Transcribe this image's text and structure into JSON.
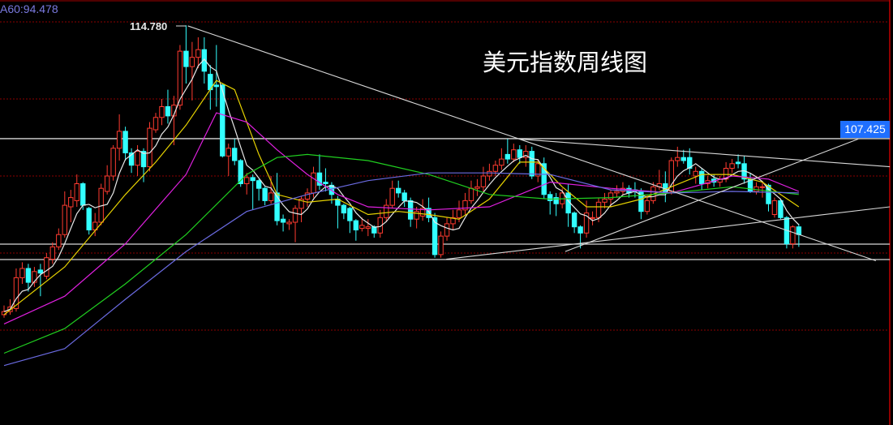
{
  "title": "美元指数周线图",
  "ma_legend": "A60:94.478",
  "peak_label": "114.780",
  "price_tag": "107.425",
  "colors": {
    "up": "#ff3b30",
    "down": "#33ffff",
    "grid": "#8b0000",
    "ma5": "#e8e8e8",
    "ma10": "#e6d200",
    "ma20": "#e020e0",
    "ma40": "#20d020",
    "ma60": "#6a6ae0",
    "trend": "#d8d8d8",
    "tag": "#1f6fff"
  },
  "chart_data": {
    "type": "candlestick",
    "ylim": [
      89.5,
      115.5
    ],
    "gridlines": [
      115,
      110,
      105,
      100,
      95
    ],
    "ohlc": [
      [
        96.0,
        96.6,
        95.8,
        96.2
      ],
      [
        96.2,
        97.0,
        96.0,
        96.5
      ],
      [
        96.4,
        99.0,
        96.2,
        98.4
      ],
      [
        98.4,
        99.4,
        98.0,
        99.0
      ],
      [
        99.0,
        99.3,
        97.5,
        98.1
      ],
      [
        98.1,
        99.1,
        97.8,
        98.8
      ],
      [
        98.9,
        99.3,
        97.2,
        98.7
      ],
      [
        98.5,
        100.0,
        98.3,
        99.7
      ],
      [
        99.6,
        100.7,
        99.3,
        100.4
      ],
      [
        100.4,
        101.6,
        100.2,
        101.2
      ],
      [
        101.2,
        104.0,
        101.0,
        103.1
      ],
      [
        103.0,
        104.1,
        102.0,
        103.6
      ],
      [
        103.4,
        105.1,
        103.0,
        104.5
      ],
      [
        104.5,
        104.6,
        102.8,
        103.1
      ],
      [
        102.9,
        103.0,
        101.2,
        101.5
      ],
      [
        101.5,
        102.6,
        101.1,
        102.0
      ],
      [
        102.0,
        104.5,
        101.8,
        104.2
      ],
      [
        104.0,
        105.7,
        103.8,
        105.0
      ],
      [
        105.0,
        107.0,
        104.7,
        106.8
      ],
      [
        106.8,
        109.0,
        106.0,
        107.9
      ],
      [
        107.9,
        108.2,
        106.0,
        106.5
      ],
      [
        106.5,
        106.8,
        105.2,
        105.7
      ],
      [
        105.7,
        107.0,
        105.0,
        106.6
      ],
      [
        106.6,
        106.8,
        104.6,
        105.6
      ],
      [
        105.6,
        108.5,
        105.3,
        108.1
      ],
      [
        108.0,
        109.1,
        107.8,
        108.8
      ],
      [
        108.8,
        110.0,
        108.3,
        109.5
      ],
      [
        109.5,
        110.6,
        108.4,
        108.9
      ],
      [
        108.9,
        110.2,
        107.0,
        109.6
      ],
      [
        109.6,
        113.5,
        109.3,
        113.1
      ],
      [
        113.1,
        114.78,
        111.0,
        112.1
      ],
      [
        112.1,
        113.7,
        109.9,
        112.7
      ],
      [
        112.7,
        114.0,
        112.0,
        113.2
      ],
      [
        113.2,
        114.0,
        111.0,
        111.8
      ],
      [
        111.6,
        112.2,
        109.3,
        110.6
      ],
      [
        110.9,
        113.5,
        109.5,
        110.8
      ],
      [
        110.9,
        111.0,
        106.2,
        106.3
      ],
      [
        106.3,
        107.1,
        105.0,
        106.8
      ],
      [
        106.8,
        107.4,
        105.7,
        106.0
      ],
      [
        106.0,
        106.1,
        104.3,
        104.5
      ],
      [
        104.5,
        105.2,
        103.8,
        104.9
      ],
      [
        104.9,
        105.1,
        102.8,
        104.7
      ],
      [
        104.7,
        104.8,
        103.4,
        104.2
      ],
      [
        104.2,
        104.3,
        103.1,
        103.4
      ],
      [
        103.4,
        105.0,
        103.2,
        103.9
      ],
      [
        103.9,
        105.2,
        101.8,
        102.1
      ],
      [
        102.2,
        102.5,
        101.4,
        102.0
      ],
      [
        101.9,
        102.2,
        101.5,
        102.0
      ],
      [
        102.0,
        103.1,
        100.7,
        102.9
      ],
      [
        102.9,
        103.7,
        102.0,
        103.5
      ],
      [
        103.5,
        104.2,
        103.0,
        103.9
      ],
      [
        103.9,
        105.6,
        103.6,
        105.2
      ],
      [
        105.2,
        106.4,
        104.1,
        104.4
      ],
      [
        104.6,
        105.5,
        104.0,
        104.5
      ],
      [
        104.4,
        104.6,
        103.2,
        103.8
      ],
      [
        103.5,
        103.7,
        101.6,
        103.1
      ],
      [
        103.1,
        103.2,
        102.2,
        102.6
      ],
      [
        102.9,
        103.0,
        101.3,
        102.1
      ],
      [
        102.1,
        102.2,
        100.8,
        101.5
      ],
      [
        101.6,
        102.3,
        101.4,
        101.8
      ],
      [
        101.6,
        102.2,
        101.1,
        101.7
      ],
      [
        101.7,
        101.8,
        101.0,
        101.3
      ],
      [
        101.3,
        102.8,
        101.0,
        102.3
      ],
      [
        102.3,
        103.5,
        102.0,
        103.1
      ],
      [
        103.1,
        104.7,
        102.9,
        104.2
      ],
      [
        104.2,
        104.7,
        103.6,
        103.9
      ],
      [
        103.9,
        104.1,
        103.0,
        103.4
      ],
      [
        103.4,
        103.6,
        101.7,
        102.2
      ],
      [
        102.2,
        103.0,
        101.6,
        102.7
      ],
      [
        102.4,
        103.5,
        102.1,
        102.9
      ],
      [
        102.9,
        103.6,
        102.0,
        102.3
      ],
      [
        102.3,
        102.6,
        99.7,
        99.9
      ],
      [
        99.9,
        101.4,
        99.7,
        101.1
      ],
      [
        101.1,
        102.3,
        100.8,
        101.9
      ],
      [
        101.9,
        102.8,
        101.5,
        102.3
      ],
      [
        102.3,
        103.4,
        102.0,
        102.8
      ],
      [
        102.8,
        103.9,
        102.5,
        103.4
      ],
      [
        103.4,
        104.7,
        103.2,
        104.2
      ],
      [
        104.2,
        104.8,
        103.7,
        104.3
      ],
      [
        104.3,
        105.6,
        104.0,
        105.0
      ],
      [
        105.0,
        105.8,
        104.7,
        105.3
      ],
      [
        105.3,
        106.0,
        105.0,
        105.7
      ],
      [
        105.7,
        106.8,
        105.4,
        106.1
      ],
      [
        106.4,
        107.4,
        105.8,
        106.1
      ],
      [
        106.1,
        107.1,
        105.9,
        106.7
      ],
      [
        106.7,
        107.0,
        105.8,
        106.2
      ],
      [
        106.2,
        107.0,
        105.6,
        106.6
      ],
      [
        106.6,
        106.9,
        104.8,
        105.0
      ],
      [
        105.0,
        106.1,
        104.6,
        105.8
      ],
      [
        105.8,
        106.2,
        103.5,
        103.8
      ],
      [
        103.8,
        104.0,
        102.5,
        103.4
      ],
      [
        103.6,
        103.9,
        102.4,
        103.2
      ],
      [
        103.2,
        104.2,
        102.9,
        103.9
      ],
      [
        103.9,
        104.5,
        101.7,
        102.6
      ],
      [
        102.6,
        102.7,
        101.3,
        101.7
      ],
      [
        101.7,
        101.8,
        100.3,
        101.3
      ],
      [
        101.3,
        103.4,
        101.0,
        102.6
      ],
      [
        102.3,
        102.7,
        101.8,
        102.3
      ],
      [
        102.3,
        103.6,
        102.0,
        103.3
      ],
      [
        103.3,
        103.9,
        102.9,
        103.5
      ],
      [
        103.5,
        104.1,
        103.0,
        103.9
      ],
      [
        103.9,
        104.4,
        103.6,
        104.0
      ],
      [
        104.0,
        104.6,
        103.8,
        104.2
      ],
      [
        104.2,
        104.4,
        103.6,
        103.9
      ],
      [
        104.1,
        104.6,
        103.6,
        104.0
      ],
      [
        104.0,
        104.2,
        102.2,
        102.7
      ],
      [
        102.7,
        103.8,
        102.5,
        103.4
      ],
      [
        103.4,
        104.6,
        103.2,
        104.3
      ],
      [
        104.3,
        105.4,
        104.1,
        104.5
      ],
      [
        104.5,
        105.3,
        103.3,
        104.0
      ],
      [
        104.0,
        106.2,
        103.8,
        106.0
      ],
      [
        106.0,
        106.9,
        105.6,
        106.2
      ],
      [
        106.2,
        106.7,
        105.8,
        106.0
      ],
      [
        106.2,
        106.8,
        105.1,
        105.5
      ],
      [
        105.0,
        105.6,
        104.5,
        105.3
      ],
      [
        105.3,
        105.5,
        104.1,
        104.5
      ],
      [
        104.5,
        105.0,
        104.2,
        104.7
      ],
      [
        104.8,
        105.1,
        104.3,
        104.6
      ],
      [
        104.6,
        105.0,
        104.3,
        104.8
      ],
      [
        104.8,
        105.9,
        104.6,
        105.5
      ],
      [
        105.5,
        106.1,
        105.2,
        105.8
      ],
      [
        105.9,
        106.4,
        105.5,
        105.8
      ],
      [
        105.8,
        106.3,
        104.5,
        104.8
      ],
      [
        104.8,
        105.2,
        103.9,
        104.0
      ],
      [
        104.0,
        104.6,
        103.8,
        104.3
      ],
      [
        104.3,
        104.6,
        103.6,
        104.3
      ],
      [
        104.4,
        104.5,
        102.7,
        103.2
      ],
      [
        102.5,
        103.6,
        102.3,
        103.4
      ],
      [
        103.4,
        103.5,
        102.2,
        102.3
      ],
      [
        102.3,
        102.4,
        100.3,
        100.6
      ],
      [
        100.6,
        101.8,
        100.3,
        101.7
      ],
      [
        101.7,
        101.9,
        100.4,
        101.2
      ]
    ],
    "moving_averages": [
      {
        "name": "MA10",
        "points": [
          [
            0,
            96.0
          ],
          [
            10,
            99.1
          ],
          [
            20,
            103.8
          ],
          [
            25,
            105.9
          ],
          [
            30,
            108.3
          ],
          [
            35,
            111.2
          ],
          [
            38,
            110.6
          ],
          [
            42,
            106.4
          ],
          [
            45,
            103.8
          ],
          [
            50,
            103.3
          ],
          [
            55,
            103.5
          ],
          [
            60,
            102.5
          ],
          [
            65,
            102.7
          ],
          [
            70,
            102.5
          ],
          [
            75,
            102.2
          ],
          [
            80,
            103.5
          ],
          [
            85,
            105.9
          ],
          [
            88,
            105.9
          ],
          [
            92,
            104.3
          ],
          [
            96,
            103.0
          ],
          [
            100,
            103.0
          ],
          [
            105,
            103.5
          ],
          [
            110,
            104.3
          ],
          [
            115,
            105.1
          ],
          [
            120,
            105.1
          ],
          [
            125,
            104.6
          ],
          [
            131,
            103.0
          ]
        ]
      },
      {
        "name": "MA20",
        "points": [
          [
            0,
            95.4
          ],
          [
            10,
            97.2
          ],
          [
            20,
            100.6
          ],
          [
            30,
            105.1
          ],
          [
            35,
            109.1
          ],
          [
            40,
            108.5
          ],
          [
            45,
            106.7
          ],
          [
            50,
            105.1
          ],
          [
            55,
            103.8
          ],
          [
            60,
            103.0
          ],
          [
            70,
            102.8
          ],
          [
            80,
            103.0
          ],
          [
            85,
            103.8
          ],
          [
            90,
            104.6
          ],
          [
            100,
            104.2
          ],
          [
            110,
            103.9
          ],
          [
            120,
            105.0
          ],
          [
            126,
            104.8
          ],
          [
            131,
            104.0
          ]
        ]
      },
      {
        "name": "MA40",
        "points": [
          [
            0,
            93.5
          ],
          [
            10,
            95.1
          ],
          [
            20,
            98.0
          ],
          [
            30,
            101.2
          ],
          [
            40,
            105.1
          ],
          [
            45,
            106.2
          ],
          [
            50,
            106.4
          ],
          [
            60,
            106.0
          ],
          [
            70,
            105.1
          ],
          [
            80,
            103.8
          ],
          [
            90,
            103.5
          ],
          [
            100,
            103.6
          ],
          [
            110,
            103.9
          ],
          [
            120,
            104.3
          ],
          [
            131,
            103.8
          ]
        ]
      },
      {
        "name": "MA60",
        "points": [
          [
            0,
            92.7
          ],
          [
            10,
            93.8
          ],
          [
            20,
            97.0
          ],
          [
            30,
            100.1
          ],
          [
            40,
            102.7
          ],
          [
            50,
            103.8
          ],
          [
            60,
            104.7
          ],
          [
            70,
            105.2
          ],
          [
            80,
            105.2
          ],
          [
            90,
            105.1
          ],
          [
            100,
            104.1
          ],
          [
            110,
            103.9
          ],
          [
            120,
            104.0
          ],
          [
            131,
            103.9
          ]
        ]
      }
    ],
    "trendlines": [
      [
        [
          30.3,
          114.74
        ],
        [
          143.7,
          99.5
        ]
      ],
      [
        [
          84.9,
          107.4
        ],
        [
          146,
          105.6
        ]
      ],
      [
        [
          72.9,
          99.6
        ],
        [
          146,
          103.0
        ]
      ],
      [
        [
          92.5,
          100.1
        ],
        [
          140.8,
          107.4
        ]
      ]
    ],
    "horizontal_lines": [
      107.425,
      100.58,
      99.58
    ]
  }
}
